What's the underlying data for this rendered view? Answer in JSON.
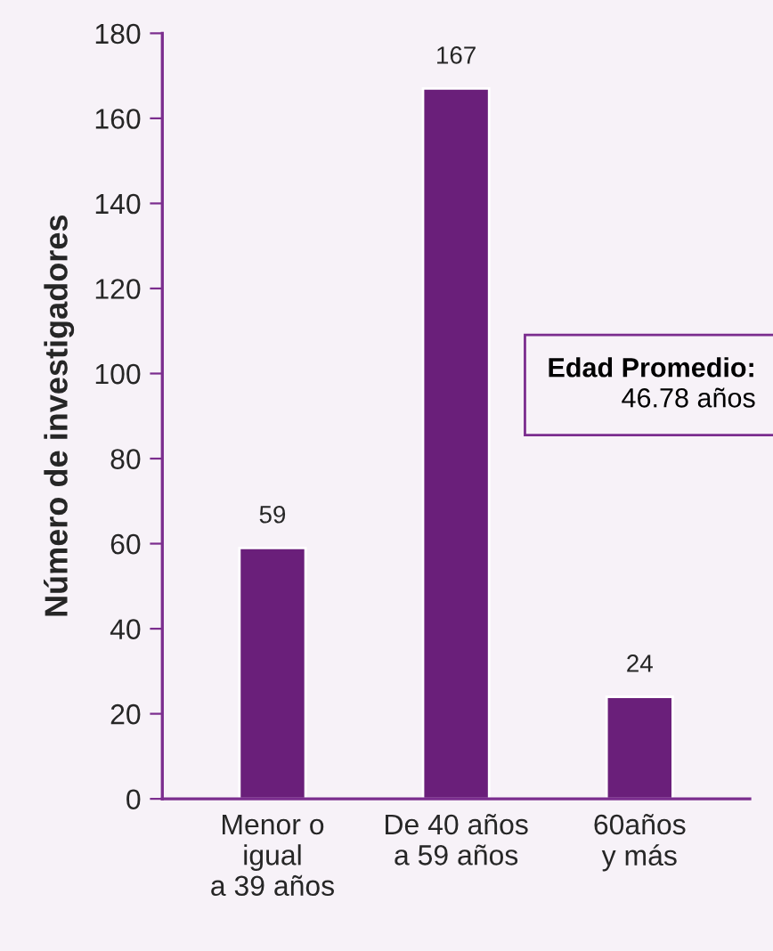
{
  "chart_data": {
    "type": "bar",
    "categories": [
      "Menor o\nigual\na 39 años",
      "De 40 años\na 59 años",
      "60años\ny más"
    ],
    "values": [
      59,
      167,
      24
    ],
    "color": "#6a1f7a",
    "ylabel": "Número de investigadores",
    "ylim": [
      0,
      180
    ],
    "yticks": [
      0,
      20,
      40,
      60,
      80,
      100,
      120,
      140,
      160,
      180
    ],
    "data_labels": true,
    "grid": false,
    "legend": false,
    "annotations": [
      "Edad Promedio:\n46.78 años"
    ]
  }
}
